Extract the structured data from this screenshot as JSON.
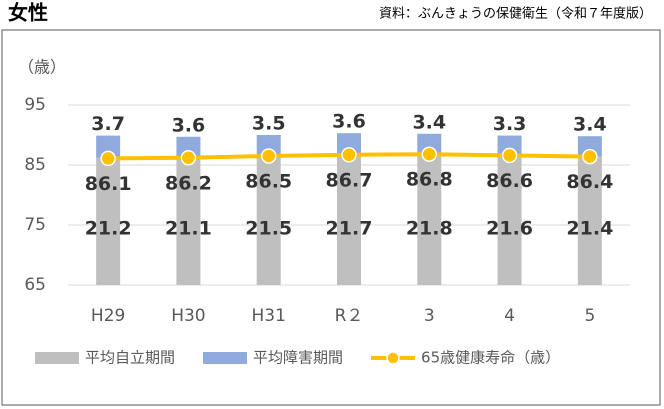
{
  "chart_data": {
    "type": "bar",
    "title": "女性",
    "source": "資料：ぶんきょうの保健衛生（令和７年度版）",
    "y_axis_label": "（歳）",
    "categories": [
      "H29",
      "H30",
      "H31",
      "R２",
      "3",
      "4",
      "5"
    ],
    "ylim": [
      65,
      95
    ],
    "yticks": [
      65,
      75,
      85,
      95
    ],
    "grid": true,
    "series": [
      {
        "name": "平均自立期間",
        "color": "#bfbfbf",
        "type": "bar",
        "values": [
          21.2,
          21.1,
          21.5,
          21.7,
          21.8,
          21.6,
          21.4
        ]
      },
      {
        "name": "平均障害期間",
        "color": "#8faadc",
        "type": "bar",
        "values": [
          3.7,
          3.6,
          3.5,
          3.6,
          3.4,
          3.3,
          3.4
        ]
      },
      {
        "name": "65歳健康寿命（歳）",
        "color": "#ffc000",
        "type": "line",
        "values": [
          86.1,
          86.2,
          86.5,
          86.7,
          86.8,
          86.6,
          86.4
        ]
      }
    ]
  }
}
